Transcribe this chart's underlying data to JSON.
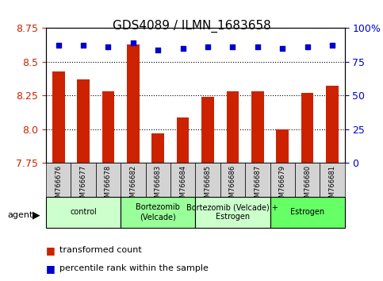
{
  "title": "GDS4089 / ILMN_1683658",
  "samples": [
    "GSM766676",
    "GSM766677",
    "GSM766678",
    "GSM766682",
    "GSM766683",
    "GSM766684",
    "GSM766685",
    "GSM766686",
    "GSM766687",
    "GSM766679",
    "GSM766680",
    "GSM766681"
  ],
  "bar_values": [
    8.43,
    8.37,
    8.28,
    8.63,
    7.97,
    8.09,
    8.24,
    8.28,
    8.28,
    8.0,
    8.27,
    8.32
  ],
  "percentile_values": [
    87,
    87,
    86,
    89,
    84,
    85,
    86,
    86,
    86,
    85,
    86,
    87
  ],
  "ylim_left": [
    7.75,
    8.75
  ],
  "ylim_right": [
    0,
    100
  ],
  "yticks_left": [
    7.75,
    8.0,
    8.25,
    8.5,
    8.75
  ],
  "yticks_right": [
    0,
    25,
    50,
    75,
    100
  ],
  "ytick_labels_right": [
    "0",
    "25",
    "50",
    "75",
    "100%"
  ],
  "groups": [
    {
      "label": "control",
      "start": 0,
      "end": 3,
      "color": "#ccffcc"
    },
    {
      "label": "Bortezomib\n(Velcade)",
      "start": 3,
      "end": 6,
      "color": "#99ff99"
    },
    {
      "label": "Bortezomib (Velcade) +\nEstrogen",
      "start": 6,
      "end": 9,
      "color": "#ccffcc"
    },
    {
      "label": "Estrogen",
      "start": 9,
      "end": 12,
      "color": "#66ff66"
    }
  ],
  "bar_color": "#cc2200",
  "dot_color": "#0000cc",
  "legend_bar_color": "#cc2200",
  "legend_dot_color": "#0000cc",
  "agent_label": "agent",
  "legend_items": [
    "transformed count",
    "percentile rank within the sample"
  ],
  "grid_color": "#000000",
  "xlabel_color": "#444444",
  "ylabel_left_color": "#cc2200",
  "ylabel_right_color": "#0000cc"
}
